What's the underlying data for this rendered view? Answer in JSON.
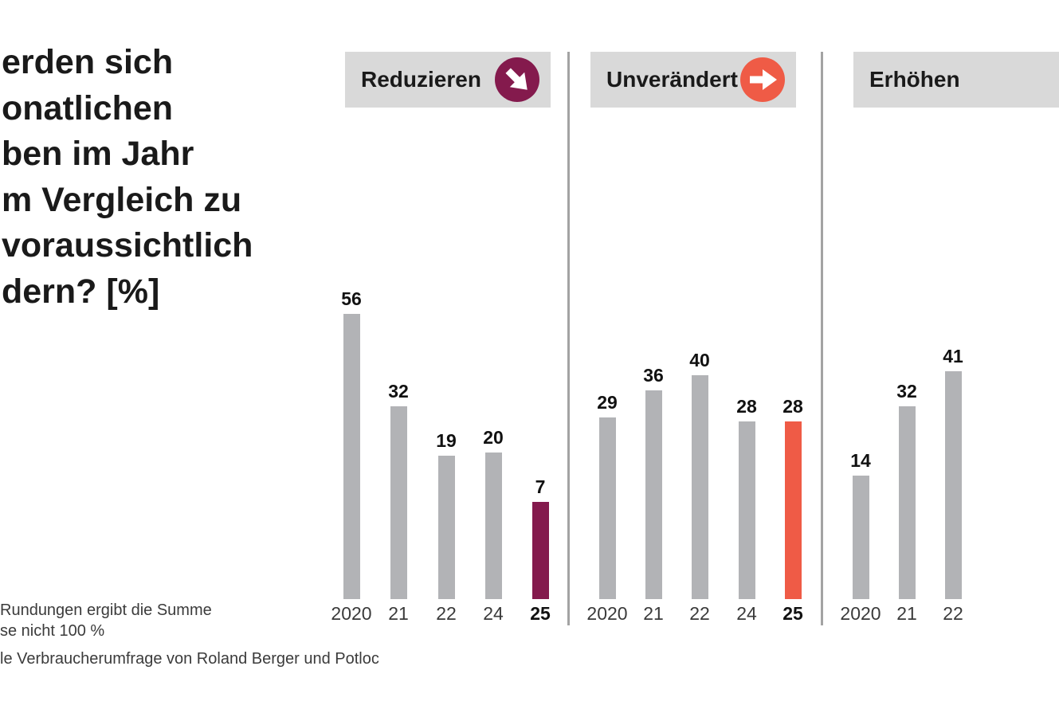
{
  "title": {
    "lines": [
      "erden sich",
      "onatlichen",
      "ben im Jahr",
      "m Vergleich zu",
      "voraussichtlich",
      "dern? [%]"
    ]
  },
  "chart_data": [
    {
      "type": "bar",
      "title": "Reduzieren",
      "icon": "arrow-down-right-icon",
      "accent": "#841a4d",
      "bar_color": "#b2b3b6",
      "categories": [
        "2020",
        "21",
        "22",
        "24",
        "25"
      ],
      "values": [
        56,
        32,
        19,
        20,
        7
      ],
      "highlight_index": 4,
      "unit": "%"
    },
    {
      "type": "bar",
      "title": "Unverändert",
      "icon": "arrow-right-icon",
      "accent": "#ef5b46",
      "bar_color": "#b2b3b6",
      "categories": [
        "2020",
        "21",
        "22",
        "24",
        "25"
      ],
      "values": [
        29,
        36,
        40,
        28,
        28
      ],
      "highlight_index": 4,
      "unit": "%"
    },
    {
      "type": "bar",
      "title": "Erhöhen",
      "icon": null,
      "accent": null,
      "bar_color": "#b2b3b6",
      "categories": [
        "2020",
        "21",
        "22"
      ],
      "values": [
        14,
        32,
        41
      ],
      "highlight_index": -1,
      "unit": "%"
    }
  ],
  "footnote": {
    "lines": [
      "Rundungen ergibt die Summe",
      "se nicht 100 %"
    ]
  },
  "source": "le Verbraucherumfrage von Roland Berger und Potloc",
  "colors": {
    "background": "#ffffff",
    "bar_gray": "#b2b3b6",
    "header_bg": "#d9d9d9",
    "divider": "#a3a3a3",
    "text_dark": "#1a1a1a",
    "text_gray": "#3b3b3b",
    "accent_maroon": "#841a4d",
    "accent_coral": "#ef5b46"
  }
}
